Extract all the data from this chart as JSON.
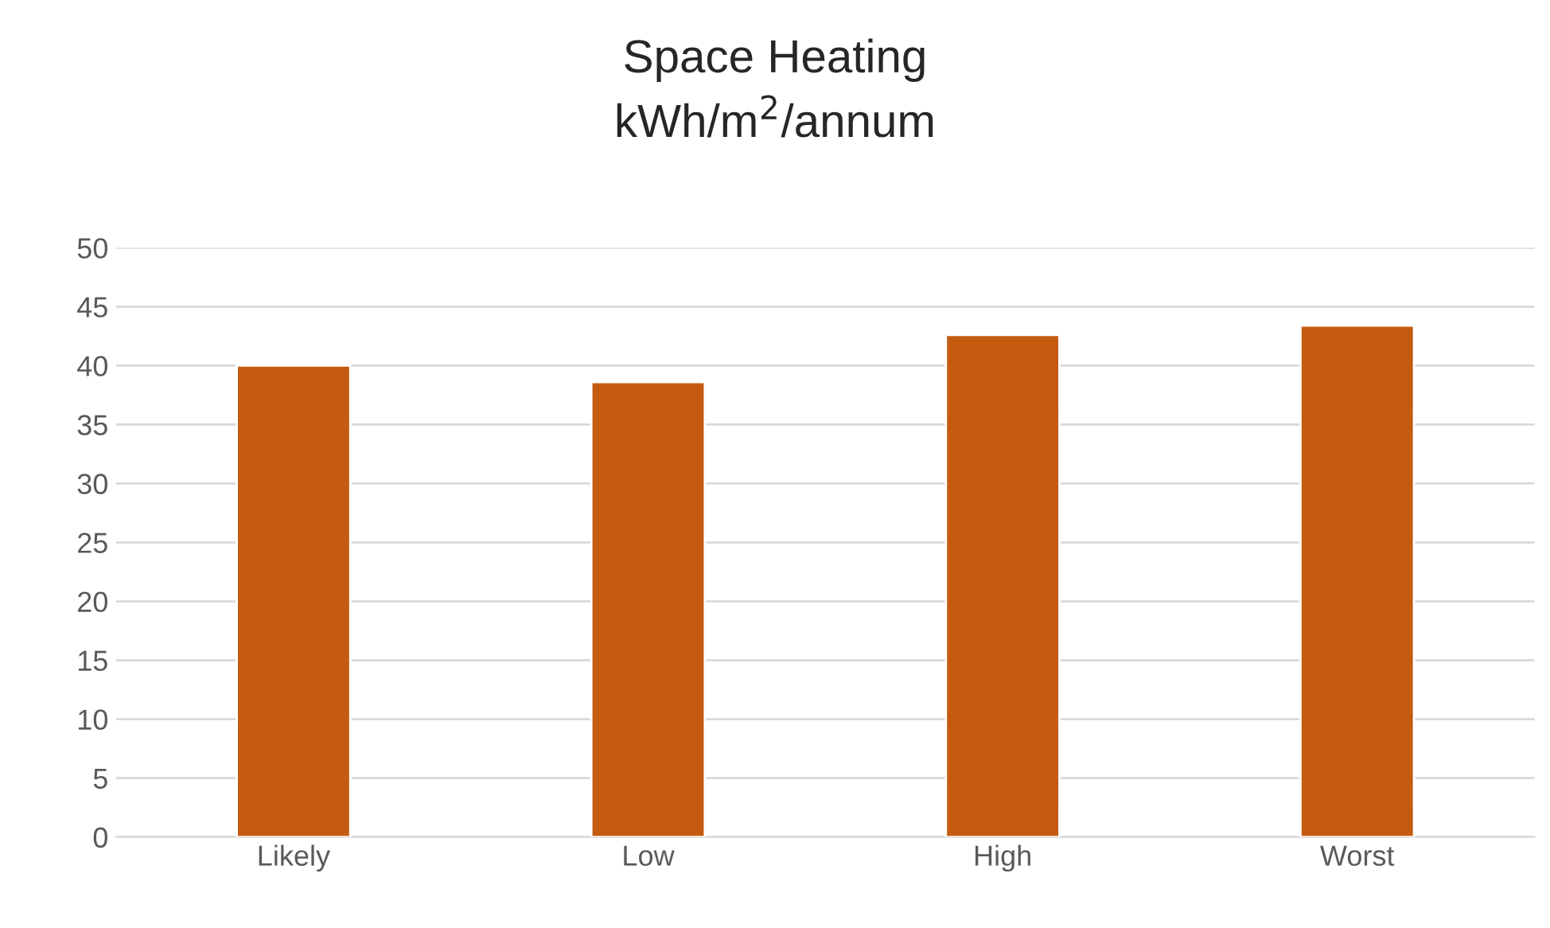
{
  "chart_data": {
    "type": "bar",
    "title": "Space Heating",
    "subtitle": "kWh/m$^{2}$/annum",
    "categories": [
      "Likely",
      "Low",
      "High",
      "Worst"
    ],
    "values": [
      40,
      38.6,
      42.6,
      43.4
    ],
    "color": "#c55a11",
    "ylim": [
      0,
      50
    ],
    "yticks": [
      0,
      5,
      10,
      15,
      20,
      25,
      30,
      35,
      40,
      45,
      50
    ],
    "grid": "y"
  }
}
